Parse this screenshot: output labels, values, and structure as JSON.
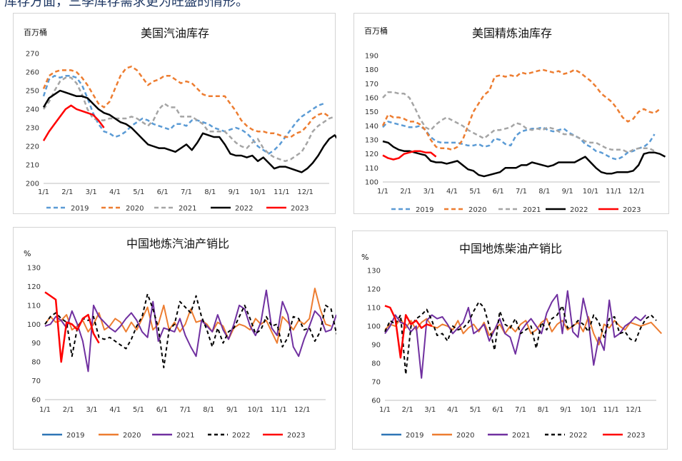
{
  "header_text": "库存方面，三季库存需求更为旺盛的情形。",
  "chart_data": [
    {
      "id": "us-gasoline",
      "type": "line",
      "title": "美国汽油库存",
      "ylabel": "百万桶",
      "ylim": [
        200,
        270
      ],
      "yticks": [
        200,
        210,
        220,
        230,
        240,
        250,
        260,
        270
      ],
      "x_ticks": [
        "1/1",
        "2/1",
        "3/1",
        "4/1",
        "5/1",
        "6/1",
        "7/1",
        "8/1",
        "9/1",
        "10/1",
        "11/1",
        "12/1"
      ],
      "series": [
        {
          "name": "2019",
          "color": "#5b9bd5",
          "dash": "6,4",
          "width": 2.5,
          "values": [
            247,
            256,
            258,
            257,
            258,
            258,
            257,
            253,
            246,
            238,
            232,
            228,
            227,
            225,
            226,
            228,
            231,
            233,
            235,
            234,
            232,
            231,
            230,
            229,
            232,
            232,
            231,
            234,
            234,
            233,
            232,
            230,
            229,
            228,
            229,
            230,
            229,
            227,
            224,
            220,
            218,
            216,
            218,
            221,
            225,
            229,
            233,
            236,
            238,
            240,
            242,
            243
          ]
        },
        {
          "name": "2020",
          "color": "#ed7d31",
          "dash": "6,4",
          "width": 2.5,
          "values": [
            251,
            258,
            260,
            261,
            261,
            261,
            260,
            257,
            253,
            248,
            243,
            241,
            244,
            251,
            258,
            262,
            263,
            261,
            257,
            253,
            255,
            256,
            258,
            258,
            256,
            254,
            255,
            254,
            251,
            248,
            247,
            247,
            247,
            247,
            243,
            239,
            234,
            231,
            229,
            228,
            228,
            227,
            227,
            226,
            225,
            225,
            227,
            228,
            231,
            235,
            237,
            238,
            236
          ]
        },
        {
          "name": "2021",
          "color": "#a5a5a5",
          "dash": "6,4",
          "width": 2.5,
          "values": [
            240,
            244,
            250,
            255,
            257,
            257,
            254,
            248,
            240,
            235,
            234,
            234,
            235,
            235,
            235,
            235,
            236,
            235,
            233,
            231,
            234,
            240,
            243,
            241,
            241,
            236,
            236,
            236,
            234,
            232,
            228,
            228,
            228,
            228,
            225,
            222,
            220,
            219,
            222,
            224,
            219,
            216,
            214,
            213,
            212,
            213,
            215,
            217,
            222,
            228,
            231,
            233,
            235,
            236
          ]
        },
        {
          "name": "2022",
          "color": "#000000",
          "dash": "",
          "width": 2.5,
          "values": [
            241,
            246,
            248,
            250,
            249,
            248,
            247,
            247,
            246,
            243,
            240,
            238,
            237,
            235,
            233,
            232,
            230,
            227,
            224,
            221,
            220,
            219,
            219,
            218,
            217,
            219,
            221,
            218,
            222,
            227,
            226,
            225,
            225,
            221,
            216,
            215,
            215,
            214,
            215,
            212,
            214,
            211,
            208,
            209,
            209,
            208,
            207,
            206,
            208,
            211,
            215,
            220,
            224,
            226,
            222,
            222
          ]
        },
        {
          "name": "2023",
          "color": "#ff0000",
          "dash": "",
          "width": 2.5,
          "values": [
            223,
            228,
            232,
            236,
            240,
            242,
            240,
            239,
            238,
            237,
            234,
            230
          ]
        }
      ]
    },
    {
      "id": "us-distillate",
      "type": "line",
      "title": "美国精炼油库存",
      "ylabel": "百万桶",
      "ylim": [
        100,
        190
      ],
      "yticks": [
        100,
        110,
        120,
        130,
        140,
        150,
        160,
        170,
        180,
        190
      ],
      "x_ticks": [
        "1/1",
        "2/1",
        "3/1",
        "4/1",
        "5/1",
        "6/1",
        "7/1",
        "8/1",
        "9/1",
        "10/1",
        "11/1",
        "12/1"
      ],
      "series": [
        {
          "name": "2019",
          "color": "#5b9bd5",
          "dash": "6,4",
          "width": 2.5,
          "values": [
            139,
            143,
            142,
            141,
            140,
            139,
            139,
            140,
            137,
            132,
            129,
            128,
            128,
            128,
            128,
            127,
            126,
            126,
            127,
            125,
            126,
            131,
            130,
            127,
            126,
            133,
            136,
            137,
            138,
            138,
            139,
            137,
            136,
            137,
            138,
            135,
            133,
            131,
            127,
            125,
            122,
            121,
            119,
            117,
            116,
            118,
            121,
            122,
            124,
            125,
            128,
            134
          ]
        },
        {
          "name": "2020",
          "color": "#ed7d31",
          "dash": "6,4",
          "width": 2.5,
          "values": [
            140,
            148,
            146,
            146,
            145,
            143,
            143,
            141,
            137,
            130,
            125,
            124,
            124,
            123,
            125,
            130,
            140,
            150,
            156,
            162,
            165,
            175,
            176,
            175,
            176,
            175,
            178,
            177,
            178,
            179,
            180,
            179,
            178,
            179,
            177,
            178,
            180,
            178,
            175,
            172,
            168,
            163,
            160,
            157,
            152,
            146,
            143,
            145,
            150,
            152,
            150,
            149,
            152
          ]
        },
        {
          "name": "2021",
          "color": "#a5a5a5",
          "dash": "6,4",
          "width": 2.5,
          "values": [
            160,
            164,
            164,
            163,
            163,
            160,
            153,
            145,
            139,
            137,
            141,
            144,
            146,
            144,
            142,
            140,
            137,
            135,
            133,
            131,
            134,
            137,
            137,
            138,
            139,
            142,
            141,
            138,
            137,
            138,
            137,
            139,
            138,
            136,
            134,
            134,
            133,
            131,
            129,
            128,
            128,
            126,
            124,
            123,
            123,
            123,
            121,
            123,
            124,
            124,
            124,
            122
          ]
        },
        {
          "name": "2022",
          "color": "#000000",
          "dash": "",
          "width": 2.5,
          "values": [
            129,
            128,
            125,
            123,
            122,
            122,
            121,
            120,
            119,
            115,
            114,
            114,
            113,
            114,
            115,
            112,
            109,
            108,
            105,
            104,
            105,
            106,
            107,
            110,
            110,
            110,
            112,
            112,
            114,
            113,
            112,
            111,
            112,
            114,
            114,
            114,
            114,
            116,
            118,
            114,
            110,
            107,
            106,
            106,
            107,
            107,
            107,
            108,
            112,
            120,
            121,
            121,
            120,
            118
          ]
        },
        {
          "name": "2023",
          "color": "#ff0000",
          "dash": "",
          "width": 2.5,
          "values": [
            119,
            117,
            116,
            117,
            120,
            121,
            122,
            122,
            121,
            121,
            118
          ]
        }
      ]
    },
    {
      "id": "cn-gasoline",
      "type": "line",
      "title": "中国地炼汽油产销比",
      "ylabel": "%",
      "ylim": [
        60,
        130
      ],
      "yticks": [
        60,
        70,
        80,
        90,
        100,
        110,
        120,
        130
      ],
      "x_ticks": [
        "1/1",
        "2/1",
        "3/1",
        "4/1",
        "5/1",
        "6/1",
        "7/1",
        "8/1",
        "9/1",
        "10/1",
        "11/1",
        "12/1"
      ],
      "series": [
        {
          "name": "2019",
          "color": "#2e75b6",
          "dash": "",
          "width": 2,
          "values": []
        },
        {
          "name": "2020",
          "color": "#ed7d31",
          "dash": "",
          "width": 2,
          "values": [
            100,
            104,
            101,
            102,
            105,
            97,
            99,
            102,
            96,
            100,
            106,
            97,
            99,
            103,
            101,
            96,
            101,
            97,
            103,
            109,
            97,
            100,
            110,
            97,
            101,
            96,
            100,
            108,
            101,
            102,
            100,
            96,
            101,
            99,
            92,
            98,
            100,
            99,
            97,
            103,
            100,
            102,
            96,
            90,
            104,
            101,
            97,
            102,
            100,
            103,
            119,
            108,
            100,
            99
          ]
        },
        {
          "name": "2021",
          "color": "#7030a0",
          "dash": "",
          "width": 2,
          "values": [
            99,
            100,
            104,
            102,
            98,
            107,
            100,
            91,
            75,
            110,
            104,
            101,
            98,
            96,
            99,
            103,
            106,
            102,
            96,
            93,
            112,
            91,
            98,
            97,
            96,
            103,
            94,
            88,
            83,
            102,
            99,
            96,
            105,
            97,
            92,
            100,
            110,
            108,
            99,
            94,
            101,
            118,
            98,
            94,
            112,
            105,
            88,
            83,
            92,
            99,
            107,
            104,
            96,
            97,
            105
          ]
        },
        {
          "name": "2022",
          "color": "#000000",
          "dash": "5,4",
          "width": 2,
          "values": [
            100,
            104,
            106,
            103,
            101,
            83,
            98,
            103,
            102,
            104,
            93,
            92,
            93,
            91,
            89,
            87,
            92,
            99,
            104,
            116,
            108,
            98,
            77,
            97,
            100,
            112,
            109,
            106,
            115,
            104,
            97,
            88,
            98,
            90,
            96,
            98,
            104,
            110,
            103,
            95,
            97,
            104,
            99,
            100,
            88,
            93,
            104,
            103,
            97,
            98,
            91,
            96,
            110,
            108,
            95,
            99,
            111
          ]
        },
        {
          "name": "2023",
          "color": "#ff0000",
          "dash": "",
          "width": 2.5,
          "values": [
            117,
            115,
            113,
            80,
            101,
            100,
            97,
            103,
            105,
            95,
            90
          ]
        }
      ]
    },
    {
      "id": "cn-diesel",
      "type": "line",
      "title": "中国地炼柴油产销比",
      "ylabel": "%",
      "ylim": [
        60,
        130
      ],
      "yticks": [
        60,
        70,
        80,
        90,
        100,
        110,
        120,
        130
      ],
      "x_ticks": [
        "1/1",
        "2/1",
        "3/1",
        "4/1",
        "5/1",
        "6/1",
        "7/1",
        "8/1",
        "9/1",
        "10/1",
        "11/1",
        "12/1"
      ],
      "series": [
        {
          "name": "2019",
          "color": "#2e75b6",
          "dash": "",
          "width": 2,
          "values": []
        },
        {
          "name": "2020",
          "color": "#ed7d31",
          "dash": "",
          "width": 2,
          "values": [
            98,
            101,
            100,
            104,
            99,
            103,
            98,
            102,
            104,
            100,
            99,
            101,
            100,
            98,
            103,
            96,
            99,
            101,
            97,
            102,
            95,
            98,
            101,
            96,
            100,
            97,
            101,
            103,
            96,
            98,
            102,
            104,
            97,
            101,
            103,
            98,
            100,
            102,
            97,
            105,
            96,
            90,
            101,
            99,
            103,
            100,
            98,
            102,
            101,
            100,
            101,
            102,
            99,
            96
          ]
        },
        {
          "name": "2021",
          "color": "#7030a0",
          "dash": "",
          "width": 2,
          "values": [
            96,
            100,
            106,
            102,
            101,
            97,
            100,
            72,
            103,
            106,
            104,
            105,
            101,
            96,
            99,
            102,
            110,
            96,
            98,
            101,
            92,
            98,
            104,
            96,
            94,
            85,
            97,
            101,
            104,
            100,
            96,
            107,
            113,
            117,
            96,
            119,
            97,
            94,
            115,
            103,
            79,
            94,
            87,
            114,
            94,
            96,
            100,
            102,
            105,
            103,
            106
          ]
        },
        {
          "name": "2022",
          "color": "#000000",
          "dash": "5,4",
          "width": 2,
          "values": [
            97,
            103,
            101,
            106,
            74,
            100,
            104,
            106,
            109,
            103,
            95,
            96,
            92,
            100,
            98,
            99,
            102,
            108,
            113,
            110,
            100,
            87,
            108,
            101,
            99,
            104,
            96,
            98,
            100,
            88,
            102,
            98,
            104,
            106,
            111,
            99,
            100,
            103,
            101,
            97,
            106,
            102,
            94,
            104,
            105,
            96,
            97,
            93,
            92,
            99,
            104,
            106,
            103
          ]
        },
        {
          "name": "2023",
          "color": "#ff0000",
          "dash": "",
          "width": 2.5,
          "values": [
            111,
            110,
            104,
            83,
            106,
            101,
            103,
            99,
            101,
            100
          ]
        }
      ]
    }
  ]
}
